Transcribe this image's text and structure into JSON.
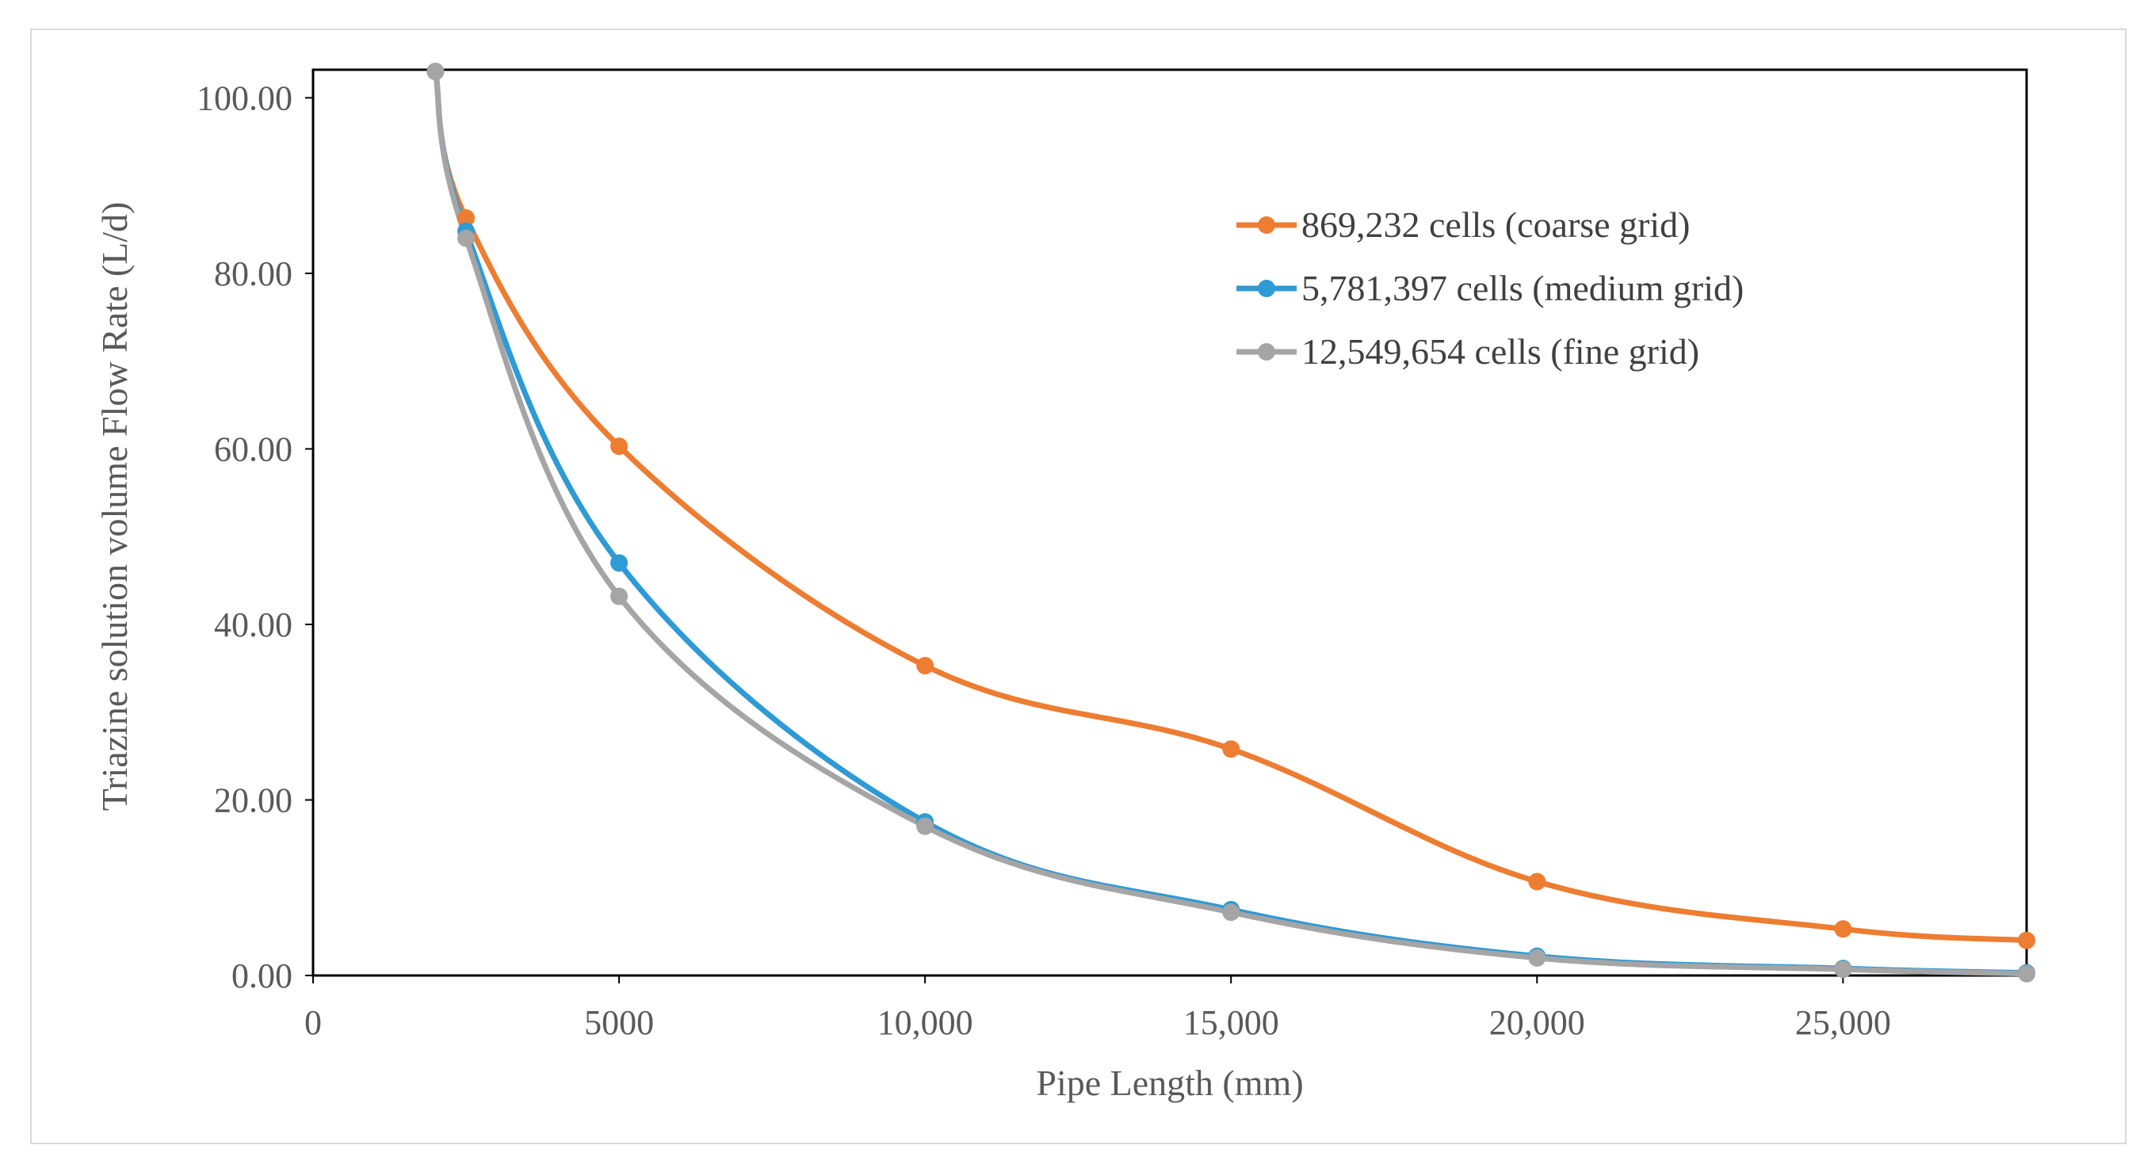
{
  "chart_data": {
    "type": "line",
    "title": "",
    "xlabel": "Pipe Length (mm)",
    "ylabel": "Triazine solution  volume Flow Rate (L/d)",
    "xlim": [
      0,
      28000
    ],
    "ylim": [
      0,
      100
    ],
    "x_ticks": [
      {
        "value": 0,
        "label": "0"
      },
      {
        "value": 5000,
        "label": "5000"
      },
      {
        "value": 10000,
        "label": "10,000"
      },
      {
        "value": 15000,
        "label": "15,000"
      },
      {
        "value": 20000,
        "label": "20,000"
      },
      {
        "value": 25000,
        "label": "25,000"
      }
    ],
    "y_ticks": [
      {
        "value": 0,
        "label": "0.00"
      },
      {
        "value": 20,
        "label": "20.00"
      },
      {
        "value": 40,
        "label": "40.00"
      },
      {
        "value": 60,
        "label": "60.00"
      },
      {
        "value": 80,
        "label": "80.00"
      },
      {
        "value": 100,
        "label": "100.00"
      }
    ],
    "grid": false,
    "legend_position": "top-right",
    "series": [
      {
        "name": "869,232 cells (coarse grid)",
        "color": "#ED7D31",
        "x": [
          2000,
          2500,
          5000,
          10000,
          15000,
          20000,
          25000,
          28000
        ],
        "y": [
          103,
          86.3,
          60.3,
          35.3,
          25.8,
          10.7,
          5.3,
          4.0
        ]
      },
      {
        "name": "5,781,397 cells (medium grid)",
        "color": "#2E9AD6",
        "x": [
          2000,
          2500,
          5000,
          10000,
          15000,
          20000,
          25000,
          28000
        ],
        "y": [
          103,
          84.8,
          47.0,
          17.5,
          7.5,
          2.2,
          0.8,
          0.3
        ]
      },
      {
        "name": "12,549,654 cells (fine grid)",
        "color": "#A5A5A5",
        "x": [
          2000,
          2500,
          5000,
          10000,
          15000,
          20000,
          25000,
          28000
        ],
        "y": [
          103,
          84.0,
          43.2,
          17.0,
          7.2,
          2.0,
          0.7,
          0.2
        ]
      }
    ]
  }
}
